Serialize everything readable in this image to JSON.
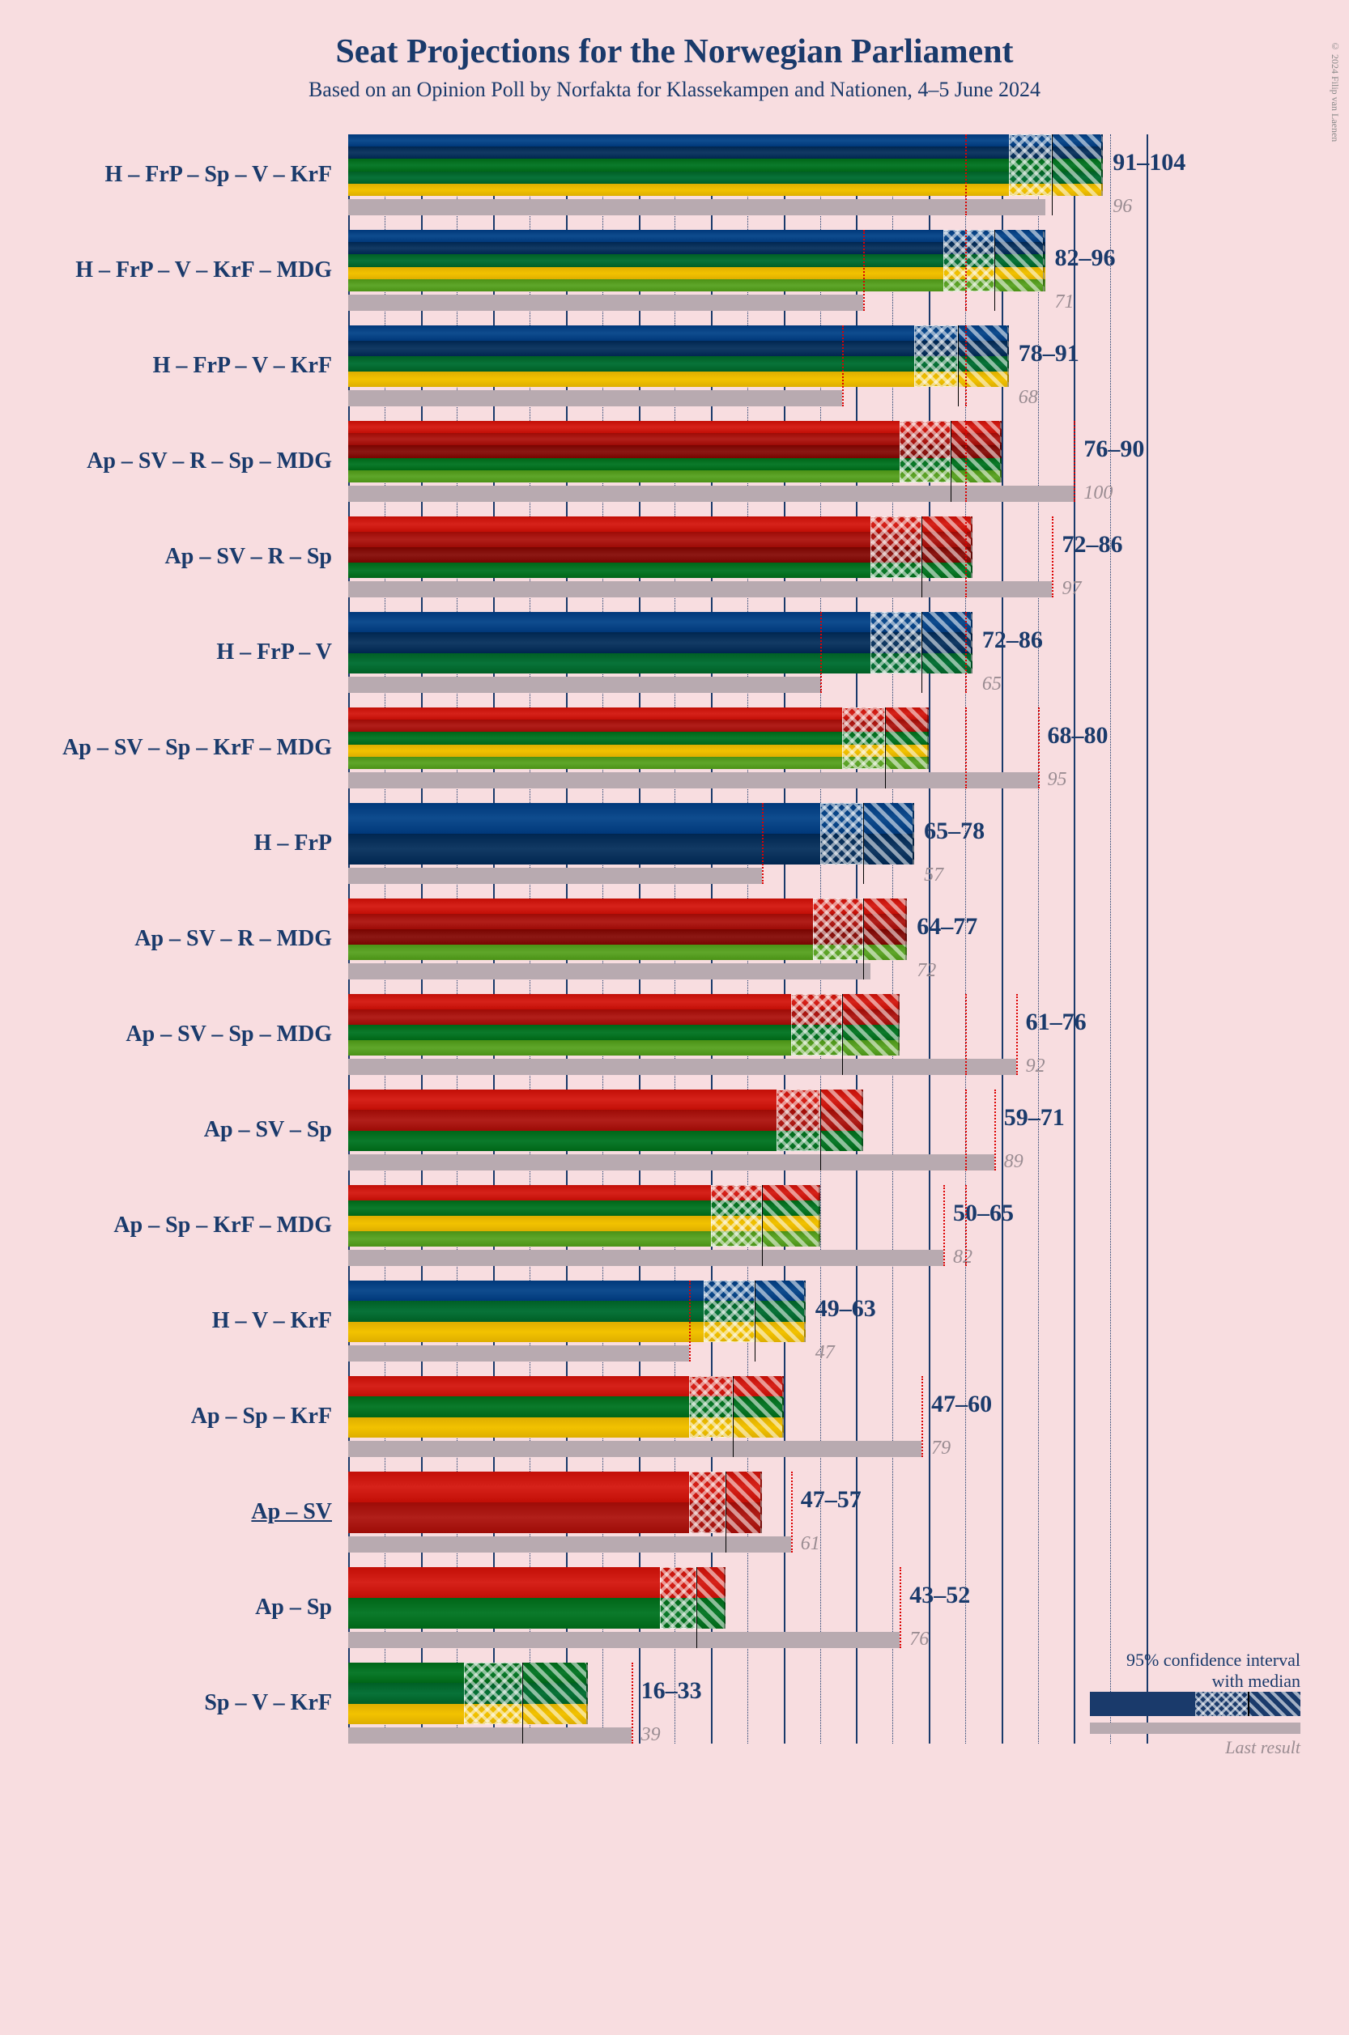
{
  "title": "Seat Projections for the Norwegian Parliament",
  "subtitle": "Based on an Opinion Poll by Norfakta for Klassekampen and Nationen, 4–5 June 2024",
  "copyright": "© 2024 Filip van Laenen",
  "axis": {
    "min": 0,
    "max": 110,
    "major_step": 10,
    "minor_step": 5
  },
  "majority_line": 85,
  "party_colors": {
    "H": "#0f4c8e",
    "FrP": "#123a64",
    "Sp": "#0b7a2b",
    "V": "#087339",
    "KrF": "#f2c200",
    "MDG": "#5fa62a",
    "Ap": "#d6221a",
    "SV": "#b11f1a",
    "R": "#8c1814"
  },
  "ci_hatch_bg": "rgba(255,255,255,0.55)",
  "last_bar_color": "#b8aab0",
  "legend": {
    "ci_label1": "95% confidence interval",
    "ci_label2": "with median",
    "last_label": "Last result"
  },
  "coalitions": [
    {
      "label": "H – FrP – Sp – V – KrF",
      "parties": [
        "H",
        "FrP",
        "Sp",
        "V",
        "KrF"
      ],
      "low": 91,
      "median": 97,
      "high": 104,
      "last": 96,
      "underline": false
    },
    {
      "label": "H – FrP – V – KrF – MDG",
      "parties": [
        "H",
        "FrP",
        "V",
        "KrF",
        "MDG"
      ],
      "low": 82,
      "median": 89,
      "high": 96,
      "last": 71,
      "underline": false
    },
    {
      "label": "H – FrP – V – KrF",
      "parties": [
        "H",
        "FrP",
        "V",
        "KrF"
      ],
      "low": 78,
      "median": 84,
      "high": 91,
      "last": 68,
      "underline": false
    },
    {
      "label": "Ap – SV – R – Sp – MDG",
      "parties": [
        "Ap",
        "SV",
        "R",
        "Sp",
        "MDG"
      ],
      "low": 76,
      "median": 83,
      "high": 90,
      "last": 100,
      "underline": false
    },
    {
      "label": "Ap – SV – R – Sp",
      "parties": [
        "Ap",
        "SV",
        "R",
        "Sp"
      ],
      "low": 72,
      "median": 79,
      "high": 86,
      "last": 97,
      "underline": false
    },
    {
      "label": "H – FrP – V",
      "parties": [
        "H",
        "FrP",
        "V"
      ],
      "low": 72,
      "median": 79,
      "high": 86,
      "last": 65,
      "underline": false
    },
    {
      "label": "Ap – SV – Sp – KrF – MDG",
      "parties": [
        "Ap",
        "SV",
        "Sp",
        "KrF",
        "MDG"
      ],
      "low": 68,
      "median": 74,
      "high": 80,
      "last": 95,
      "underline": false
    },
    {
      "label": "H – FrP",
      "parties": [
        "H",
        "FrP"
      ],
      "low": 65,
      "median": 71,
      "high": 78,
      "last": 57,
      "underline": false
    },
    {
      "label": "Ap – SV – R – MDG",
      "parties": [
        "Ap",
        "SV",
        "R",
        "MDG"
      ],
      "low": 64,
      "median": 71,
      "high": 77,
      "last": 72,
      "underline": false
    },
    {
      "label": "Ap – SV – Sp – MDG",
      "parties": [
        "Ap",
        "SV",
        "Sp",
        "MDG"
      ],
      "low": 61,
      "median": 68,
      "high": 76,
      "last": 92,
      "underline": false
    },
    {
      "label": "Ap – SV – Sp",
      "parties": [
        "Ap",
        "SV",
        "Sp"
      ],
      "low": 59,
      "median": 65,
      "high": 71,
      "last": 89,
      "underline": false
    },
    {
      "label": "Ap – Sp – KrF – MDG",
      "parties": [
        "Ap",
        "Sp",
        "KrF",
        "MDG"
      ],
      "low": 50,
      "median": 57,
      "high": 65,
      "last": 82,
      "underline": false
    },
    {
      "label": "H – V – KrF",
      "parties": [
        "H",
        "V",
        "KrF"
      ],
      "low": 49,
      "median": 56,
      "high": 63,
      "last": 47,
      "underline": false
    },
    {
      "label": "Ap – Sp – KrF",
      "parties": [
        "Ap",
        "Sp",
        "KrF"
      ],
      "low": 47,
      "median": 53,
      "high": 60,
      "last": 79,
      "underline": false
    },
    {
      "label": "Ap – SV",
      "parties": [
        "Ap",
        "SV"
      ],
      "low": 47,
      "median": 52,
      "high": 57,
      "last": 61,
      "underline": true
    },
    {
      "label": "Ap – Sp",
      "parties": [
        "Ap",
        "Sp"
      ],
      "low": 43,
      "median": 48,
      "high": 52,
      "last": 76,
      "underline": false
    },
    {
      "label": "Sp – V – KrF",
      "parties": [
        "Sp",
        "V",
        "KrF"
      ],
      "low": 16,
      "median": 24,
      "high": 33,
      "last": 39,
      "underline": false
    }
  ]
}
